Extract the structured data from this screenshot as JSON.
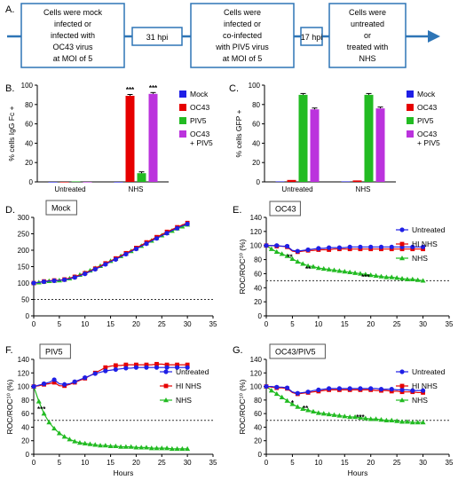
{
  "panel_labels": {
    "A": "A.",
    "B": "B.",
    "C": "C.",
    "D": "D.",
    "E": "E.",
    "F": "F.",
    "G": "G."
  },
  "timeline": {
    "boxes": [
      [
        "Cells were mock",
        "infected or",
        "infected with",
        "OC43 virus",
        "at MOI of 5"
      ],
      [
        "Cells were",
        "infected or",
        "co-infected",
        "with PIV5 virus",
        "at MOI of 5"
      ],
      [
        "Cells were",
        "untreated",
        "or",
        "treated with",
        "NHS"
      ]
    ],
    "labels": [
      "31 hpi",
      "17 hpi"
    ],
    "color": "#2e75b6"
  },
  "colors": {
    "blue": "#1f1fe6",
    "red": "#e60000",
    "green": "#22bb22",
    "purple": "#bb33dd",
    "untreated": "#1f1fe6",
    "hinhs": "#e60000",
    "nhs": "#22bb22"
  },
  "chart_data": [
    {
      "id": "B",
      "type": "bar",
      "ylabel": "% cells IgG Fc +",
      "categories": [
        "Untreated",
        "NHS"
      ],
      "ylim": [
        0,
        100
      ],
      "yticks": [
        0,
        20,
        40,
        60,
        80,
        100
      ],
      "series": [
        {
          "name": "Mock",
          "values": [
            0,
            0
          ]
        },
        {
          "name": "OC43",
          "values": [
            0,
            89
          ]
        },
        {
          "name": "PIV5",
          "values": [
            0.5,
            9
          ]
        },
        {
          "name": "OC43 + PIV5",
          "values": [
            0,
            91
          ]
        }
      ],
      "annotations": [
        {
          "series": 1,
          "category": 1,
          "text": "***"
        },
        {
          "series": 3,
          "category": 1,
          "text": "***"
        }
      ],
      "legend": "right"
    },
    {
      "id": "C",
      "type": "bar",
      "ylabel": "% cells GFP +",
      "categories": [
        "Untreated",
        "NHS"
      ],
      "ylim": [
        0,
        100
      ],
      "yticks": [
        0,
        20,
        40,
        60,
        80,
        100
      ],
      "series": [
        {
          "name": "Mock",
          "values": [
            0.5,
            0.5
          ]
        },
        {
          "name": "OC43",
          "values": [
            2,
            1.5
          ]
        },
        {
          "name": "PIV5",
          "values": [
            90,
            90
          ]
        },
        {
          "name": "OC43 + PIV5",
          "values": [
            75,
            76
          ]
        }
      ],
      "legend": "right"
    },
    {
      "id": "D",
      "type": "line",
      "title": "Mock",
      "xlabel": "",
      "ylabel": "",
      "xlim": [
        0,
        35
      ],
      "xticks": [
        0,
        5,
        10,
        15,
        20,
        25,
        30,
        35
      ],
      "ylim": [
        0,
        300
      ],
      "yticks": [
        0,
        50,
        100,
        150,
        200,
        250,
        300
      ],
      "refline": 50,
      "x": [
        0,
        1,
        2,
        3,
        4,
        5,
        6,
        7,
        8,
        9,
        10,
        11,
        12,
        13,
        14,
        15,
        16,
        17,
        18,
        19,
        20,
        21,
        22,
        23,
        24,
        25,
        26,
        27,
        28,
        29,
        30
      ],
      "series": [
        {
          "name": "Untreated",
          "values": [
            100,
            102,
            104,
            106,
            107,
            108,
            110,
            113,
            117,
            122,
            128,
            135,
            142,
            149,
            157,
            165,
            172,
            180,
            188,
            196,
            204,
            212,
            220,
            228,
            236,
            244,
            252,
            260,
            267,
            274,
            280
          ]
        },
        {
          "name": "HI NHS",
          "values": [
            100,
            102,
            105,
            107,
            108,
            109,
            111,
            115,
            119,
            124,
            130,
            137,
            144,
            152,
            160,
            167,
            175,
            183,
            191,
            199,
            207,
            215,
            224,
            232,
            240,
            248,
            256,
            263,
            270,
            277,
            283
          ]
        },
        {
          "name": "NHS",
          "values": [
            100,
            102,
            104,
            106,
            107,
            108,
            110,
            114,
            119,
            125,
            131,
            138,
            145,
            152,
            159,
            167,
            174,
            182,
            189,
            197,
            205,
            213,
            221,
            229,
            237,
            245,
            252,
            259,
            266,
            272,
            278
          ]
        }
      ]
    },
    {
      "id": "E",
      "type": "line",
      "title": "OC43",
      "xlabel": "",
      "ylabel": "ROC/ROC¹⁰ (%)",
      "xlim": [
        0,
        35
      ],
      "xticks": [
        0,
        5,
        10,
        15,
        20,
        25,
        30,
        35
      ],
      "ylim": [
        0,
        140
      ],
      "yticks": [
        0,
        20,
        40,
        60,
        80,
        100,
        120,
        140
      ],
      "refline": 50,
      "x": [
        0,
        1,
        2,
        3,
        4,
        5,
        6,
        7,
        8,
        9,
        10,
        11,
        12,
        13,
        14,
        15,
        16,
        17,
        18,
        19,
        20,
        21,
        22,
        23,
        24,
        25,
        26,
        27,
        28,
        29,
        30
      ],
      "series": [
        {
          "name": "Untreated",
          "values": [
            100,
            100,
            100,
            99,
            99,
            93,
            92,
            93,
            94,
            95,
            96,
            96,
            97,
            97,
            97,
            97,
            98,
            98,
            98,
            98,
            98,
            98,
            98,
            98,
            98,
            98,
            98,
            98,
            98,
            98,
            98
          ]
        },
        {
          "name": "HI NHS",
          "values": [
            100,
            100,
            99,
            99,
            98,
            92,
            91,
            92,
            93,
            93,
            94,
            94,
            94,
            95,
            95,
            95,
            95,
            95,
            95,
            95,
            95,
            95,
            95,
            95,
            95,
            95,
            95,
            95,
            95,
            95,
            95
          ]
        },
        {
          "name": "NHS",
          "values": [
            100,
            95,
            91,
            88,
            85,
            81,
            77,
            74,
            71,
            70,
            68,
            67,
            66,
            65,
            64,
            63,
            62,
            61,
            60,
            59,
            58,
            57,
            56,
            55,
            55,
            54,
            53,
            52,
            52,
            51,
            50
          ]
        }
      ],
      "annotations": [
        {
          "x": 4.5,
          "y": 80,
          "text": "**"
        },
        {
          "x": 8,
          "y": 63,
          "text": "**"
        },
        {
          "x": 19,
          "y": 52,
          "text": "***"
        }
      ],
      "legend": "top-right"
    },
    {
      "id": "F",
      "type": "line",
      "title": "PIV5",
      "xlabel": "Hours",
      "ylabel": "ROC/ROC¹⁰ (%)",
      "xlim": [
        0,
        35
      ],
      "xticks": [
        0,
        5,
        10,
        15,
        20,
        25,
        30,
        35
      ],
      "ylim": [
        0,
        140
      ],
      "yticks": [
        0,
        20,
        40,
        60,
        80,
        100,
        120,
        140
      ],
      "refline": 50,
      "x": [
        0,
        1,
        2,
        3,
        4,
        5,
        6,
        7,
        8,
        9,
        10,
        11,
        12,
        13,
        14,
        15,
        16,
        17,
        18,
        19,
        20,
        21,
        22,
        23,
        24,
        25,
        26,
        27,
        28,
        29,
        30
      ],
      "series": [
        {
          "name": "Untreated",
          "values": [
            100,
            102,
            104,
            106,
            110,
            104,
            103,
            104,
            107,
            110,
            113,
            116,
            119,
            121,
            123,
            124,
            125,
            126,
            127,
            127,
            128,
            128,
            128,
            128,
            128,
            128,
            128,
            128,
            128,
            128,
            128
          ]
        },
        {
          "name": "HI NHS",
          "values": [
            100,
            101,
            103,
            104,
            106,
            101,
            101,
            103,
            106,
            109,
            112,
            116,
            120,
            124,
            128,
            130,
            131,
            131,
            132,
            132,
            132,
            132,
            132,
            132,
            133,
            133,
            132,
            132,
            132,
            132,
            132
          ]
        },
        {
          "name": "NHS",
          "values": [
            100,
            78,
            60,
            47,
            38,
            31,
            26,
            22,
            19,
            17,
            16,
            15,
            14,
            13,
            13,
            12,
            12,
            11,
            11,
            11,
            10,
            10,
            10,
            9,
            9,
            9,
            9,
            8,
            8,
            8,
            8
          ]
        }
      ],
      "annotations": [
        {
          "x": 1.5,
          "y": 63,
          "text": "***"
        }
      ],
      "legend": "top-right"
    },
    {
      "id": "G",
      "type": "line",
      "title": "OC43/PIV5",
      "xlabel": "Hours",
      "ylabel": "ROC/ROC¹⁰ (%)",
      "xlim": [
        0,
        35
      ],
      "xticks": [
        0,
        5,
        10,
        15,
        20,
        25,
        30,
        35
      ],
      "ylim": [
        0,
        140
      ],
      "yticks": [
        0,
        20,
        40,
        60,
        80,
        100,
        120,
        140
      ],
      "refline": 50,
      "x": [
        0,
        1,
        2,
        3,
        4,
        5,
        6,
        7,
        8,
        9,
        10,
        11,
        12,
        13,
        14,
        15,
        16,
        17,
        18,
        19,
        20,
        21,
        22,
        23,
        24,
        25,
        26,
        27,
        28,
        29,
        30
      ],
      "series": [
        {
          "name": "Untreated",
          "values": [
            100,
            100,
            99,
            99,
            98,
            92,
            90,
            91,
            92,
            94,
            95,
            96,
            97,
            97,
            97,
            97,
            97,
            97,
            97,
            97,
            97,
            97,
            96,
            96,
            96,
            95,
            95,
            95,
            94,
            94,
            94
          ]
        },
        {
          "name": "HI NHS",
          "values": [
            100,
            99,
            98,
            98,
            97,
            91,
            89,
            90,
            91,
            92,
            93,
            94,
            95,
            95,
            95,
            95,
            95,
            95,
            95,
            95,
            95,
            94,
            94,
            94,
            93,
            93,
            92,
            92,
            92,
            91,
            91
          ]
        },
        {
          "name": "NHS",
          "values": [
            100,
            94,
            89,
            84,
            79,
            74,
            70,
            67,
            65,
            63,
            61,
            60,
            59,
            58,
            57,
            56,
            55,
            55,
            54,
            53,
            52,
            52,
            51,
            50,
            50,
            49,
            48,
            48,
            47,
            47,
            47
          ]
        }
      ],
      "annotations": [
        {
          "x": 5,
          "y": 72,
          "text": "*"
        },
        {
          "x": 7.5,
          "y": 64,
          "text": "**"
        },
        {
          "x": 18,
          "y": 51,
          "text": "***"
        }
      ],
      "legend": "top-right"
    }
  ]
}
